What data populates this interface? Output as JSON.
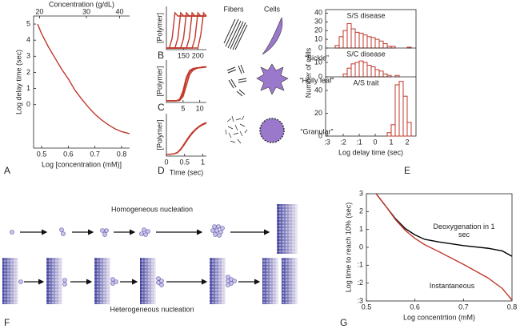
{
  "chart_data": [
    {
      "type": "line",
      "panel": "A",
      "xlabel": "Log [concentration (mM)]",
      "ylabel": "Log delay time (sec)",
      "x2label": "Concentration (g/dL)",
      "x": [
        0.485,
        0.5,
        0.525,
        0.55,
        0.575,
        0.6,
        0.625,
        0.65,
        0.675,
        0.7,
        0.725,
        0.75,
        0.775,
        0.8,
        0.83
      ],
      "values": [
        5,
        4.4,
        3.6,
        2.9,
        2.2,
        1.6,
        0.9,
        0.35,
        -0.15,
        -0.6,
        -0.95,
        -1.25,
        -1.5,
        -1.68,
        -1.8
      ],
      "color": "#c1392b",
      "xlim": [
        0.47,
        0.83
      ],
      "xticks": [
        0.5,
        0.6,
        0.7,
        0.8
      ],
      "ylim": [
        -2.7,
        5.5
      ],
      "yticks": [
        0,
        1,
        2,
        3,
        4,
        5
      ],
      "x2lim": [
        19,
        43.6
      ],
      "x2ticks": [
        20,
        30,
        40
      ],
      "x2log": true
    },
    {
      "type": "line",
      "panel": "B",
      "ylabel": "[Polymer]",
      "x": [
        90,
        100,
        110,
        120,
        130,
        140,
        150,
        160,
        170,
        180,
        190,
        200,
        210,
        220,
        230
      ],
      "series": [
        {
          "color": "#c1392b",
          "values": [
            0,
            0,
            0.3,
            1.1,
            1,
            1,
            1,
            1,
            1,
            1,
            1,
            1,
            1,
            1,
            1
          ]
        },
        {
          "color": "#c1392b",
          "values": [
            0,
            0,
            0,
            0,
            0.3,
            1.1,
            1,
            1,
            1,
            1,
            1,
            1,
            1,
            1,
            1
          ]
        },
        {
          "color": "#c1392b",
          "values": [
            0,
            0,
            0,
            0,
            0,
            0,
            0.3,
            1.1,
            1,
            1,
            1,
            1,
            1,
            1,
            1
          ]
        },
        {
          "color": "#c1392b",
          "values": [
            0,
            0,
            0,
            0,
            0,
            0,
            0,
            0,
            0.3,
            1.1,
            1,
            1,
            1,
            1,
            1
          ]
        },
        {
          "color": "#c1392b",
          "values": [
            0,
            0,
            0,
            0,
            0,
            0,
            0,
            0,
            0,
            0,
            0.3,
            1.1,
            1,
            1,
            1
          ]
        },
        {
          "color": "#c1392b",
          "values": [
            0,
            0,
            0,
            0,
            0,
            0,
            0,
            0,
            0,
            0,
            0,
            0,
            0.4,
            1.1,
            1
          ]
        }
      ],
      "xlim": [
        90,
        230
      ],
      "xticks": [
        150,
        200
      ],
      "ylim": [
        -0.05,
        1.3
      ]
    },
    {
      "type": "line",
      "panel": "C",
      "ylabel": "[Polymer]",
      "x": [
        0,
        1,
        2,
        3,
        4,
        5,
        6,
        7,
        8,
        9,
        10,
        11,
        12
      ],
      "series": [
        {
          "color": "#c1392b",
          "values": [
            0,
            0,
            0,
            0,
            0.05,
            0.3,
            0.7,
            0.9,
            0.95,
            0.97,
            0.98,
            1,
            1
          ]
        },
        {
          "color": "#c1392b",
          "values": [
            0,
            0,
            0,
            0,
            0.02,
            0.2,
            0.6,
            0.85,
            0.93,
            0.96,
            0.98,
            0.99,
            1
          ]
        },
        {
          "color": "#c1392b",
          "values": [
            0,
            0,
            0,
            0,
            0.01,
            0.12,
            0.45,
            0.78,
            0.9,
            0.95,
            0.97,
            0.98,
            0.99
          ]
        }
      ],
      "xlim": [
        0,
        12
      ],
      "xticks": [
        5,
        10
      ],
      "ylim": [
        -0.05,
        1.2
      ]
    },
    {
      "type": "line",
      "panel": "D",
      "ylabel": "[Polymer]",
      "xlabel": "Time (sec)",
      "x": [
        0,
        0.1,
        0.2,
        0.3,
        0.4,
        0.5,
        0.6,
        0.7,
        0.8,
        0.9,
        1,
        1.1
      ],
      "series": [
        {
          "color": "#c1392b",
          "values": [
            0,
            0,
            0.01,
            0.05,
            0.15,
            0.3,
            0.45,
            0.58,
            0.68,
            0.76,
            0.82,
            0.86
          ]
        },
        {
          "color": "#c1392b",
          "values": [
            0,
            0,
            0.01,
            0.04,
            0.13,
            0.27,
            0.42,
            0.55,
            0.66,
            0.74,
            0.8,
            0.84
          ]
        }
      ],
      "xlim": [
        0,
        1.1
      ],
      "xticks": [
        0,
        0.5,
        1
      ],
      "ylim": [
        -0.05,
        1.1
      ]
    },
    {
      "type": "histogram",
      "panel": "E",
      "xlabel": "Log delay time (sec)",
      "ylabel": "Number of cells",
      "xlim": [
        -3.1,
        2.55
      ],
      "xticks": [
        {
          "value": -3,
          "label": ":3"
        },
        {
          "value": -2,
          "label": ":2"
        },
        {
          "value": -1,
          "label": ":1"
        },
        0,
        1,
        2
      ],
      "series": [
        {
          "name": "S/S disease",
          "color": "#c1392b",
          "ylim": [
            0,
            44
          ],
          "yticks": [
            0,
            10,
            20,
            30,
            40
          ],
          "bins": [
            -2.5,
            -2.25,
            -2,
            -1.75,
            -1.5,
            -1.25,
            -1,
            -0.75,
            -0.5,
            -0.25,
            0,
            0.25,
            0.5,
            0.75,
            1,
            1.25,
            1.5,
            1.75,
            2,
            2.25
          ],
          "values": [
            3,
            13,
            20,
            28,
            22,
            18,
            17,
            15,
            13,
            12,
            10,
            8,
            5,
            2,
            2,
            0,
            0,
            0,
            1
          ]
        },
        {
          "name": "S/C disease",
          "color": "#c1392b",
          "ylim": [
            0,
            20
          ],
          "yticks": [
            0,
            10
          ],
          "bins": [
            -2,
            -1.75,
            -1.5,
            -1.25,
            -1,
            -0.75,
            -0.5,
            -0.25,
            0,
            0.25,
            0.5,
            0.75,
            1,
            1.25,
            1.5
          ],
          "values": [
            2,
            6,
            9,
            10,
            11,
            10,
            8,
            7,
            5,
            4,
            2,
            1,
            0,
            1
          ]
        },
        {
          "name": "A/S trait",
          "color": "#c1392b",
          "ylim": [
            0,
            52
          ],
          "yticks": [
            0,
            20,
            40
          ],
          "bins": [
            0.75,
            1,
            1.25,
            1.5,
            1.75,
            2,
            2.25
          ],
          "values": [
            3,
            10,
            45,
            48,
            35,
            12
          ]
        }
      ]
    },
    {
      "type": "line",
      "panel": "G",
      "xlabel": "Log concentrtion (mM)",
      "ylabel": "Log time to reach 10% (sec)",
      "x": [
        0.52,
        0.54,
        0.56,
        0.58,
        0.6,
        0.62,
        0.65,
        0.7,
        0.75,
        0.78,
        0.8
      ],
      "series": [
        {
          "name": "Deoxygenation in 1 sec",
          "color": "#000000",
          "values": [
            3,
            2.3,
            1.6,
            1.05,
            0.7,
            0.45,
            0.3,
            0.1,
            -0.05,
            -0.2,
            -0.5
          ]
        },
        {
          "name": "Instantaneous",
          "color": "#c1392b",
          "values": [
            3,
            2.3,
            1.55,
            0.95,
            0.5,
            0.15,
            -0.25,
            -0.95,
            -1.7,
            -2.3,
            -2.95
          ]
        }
      ],
      "xlim": [
        0.5,
        0.8
      ],
      "xticks": [
        0.5,
        0.6,
        0.7,
        0.8
      ],
      "ylim": [
        -3,
        3
      ],
      "yticks": [
        3,
        2,
        1,
        0,
        {
          "value": -1,
          "label": ":1"
        },
        {
          "value": -2,
          "label": ":2"
        },
        {
          "value": -3,
          "label": ":3"
        }
      ]
    }
  ],
  "figure": {
    "morphology": {
      "fibers": "Fibers",
      "cells": "Cells",
      "shapes": [
        "“Sickle”",
        "“Holly leaf”",
        "“Granular”"
      ]
    },
    "nucleation": {
      "panel": "F",
      "homogeneous": "Homogeneous nucleation",
      "heterogeneous": "Heterogeneous nucleation"
    }
  }
}
